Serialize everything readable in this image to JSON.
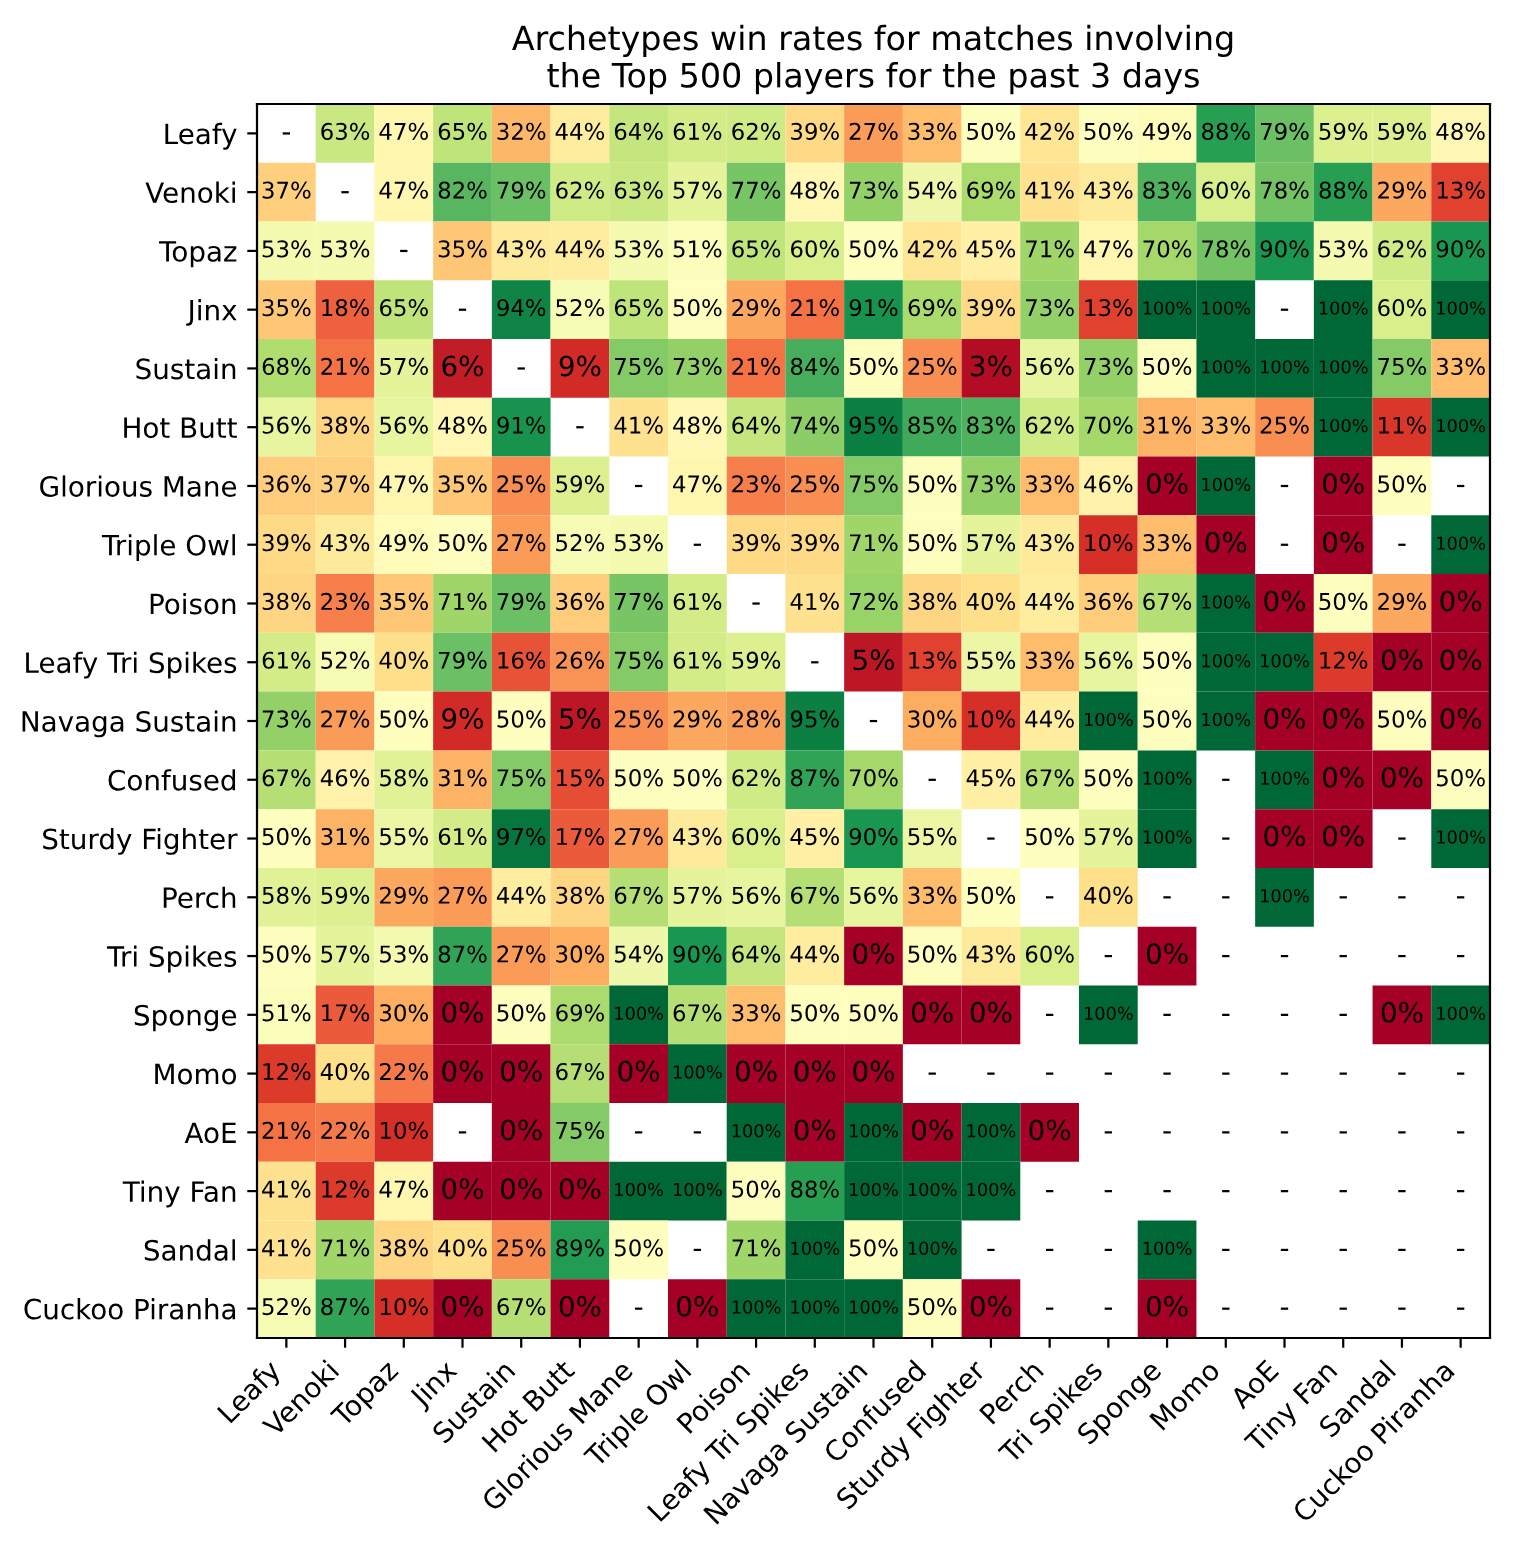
{
  "chart_data": {
    "type": "heatmap",
    "title": "Archetypes win rates for matches involving\nthe Top 500 players for the past 3 days",
    "categories": [
      "Leafy",
      "Venoki",
      "Topaz",
      "Jinx",
      "Sustain",
      "Hot Butt",
      "Glorious Mane",
      "Triple Owl",
      "Poison",
      "Leafy Tri Spikes",
      "Navaga Sustain",
      "Confused",
      "Sturdy Fighter",
      "Perch",
      "Tri Spikes",
      "Sponge",
      "Momo",
      "AoE",
      "Tiny Fan",
      "Sandal",
      "Cuckoo Piranha"
    ],
    "y_categories": [
      "Leafy",
      "Venoki",
      "Topaz",
      "Jinx",
      "Sustain",
      "Hot Butt",
      "Glorious Mane",
      "Triple Owl",
      "Poison",
      "Leafy Tri Spikes",
      "Navaga Sustain",
      "Confused",
      "Sturdy Fighter",
      "Perch",
      "Tri Spikes",
      "Sponge",
      "Momo",
      "AoE",
      "Tiny Fan",
      "Sandal",
      "Cuckoo Piranha"
    ],
    "cells": [
      [
        null,
        63,
        47,
        65,
        32,
        44,
        64,
        61,
        62,
        39,
        27,
        33,
        50,
        42,
        50,
        49,
        88,
        79,
        59,
        59,
        48
      ],
      [
        37,
        null,
        47,
        82,
        79,
        62,
        63,
        57,
        77,
        48,
        73,
        54,
        69,
        41,
        43,
        83,
        60,
        78,
        88,
        29,
        13
      ],
      [
        53,
        53,
        null,
        35,
        43,
        44,
        53,
        51,
        65,
        60,
        50,
        42,
        45,
        71,
        47,
        70,
        78,
        90,
        53,
        62,
        90
      ],
      [
        35,
        18,
        65,
        null,
        94,
        52,
        65,
        50,
        29,
        21,
        91,
        69,
        39,
        73,
        13,
        100,
        100,
        null,
        100,
        60,
        100
      ],
      [
        68,
        21,
        57,
        6,
        null,
        9,
        75,
        73,
        21,
        84,
        50,
        25,
        3,
        56,
        73,
        50,
        100,
        100,
        100,
        75,
        33
      ],
      [
        56,
        38,
        56,
        48,
        91,
        null,
        41,
        48,
        64,
        74,
        95,
        85,
        83,
        62,
        70,
        31,
        33,
        25,
        100,
        11,
        100
      ],
      [
        36,
        37,
        47,
        35,
        25,
        59,
        null,
        47,
        23,
        25,
        75,
        50,
        73,
        33,
        46,
        0,
        100,
        null,
        0,
        50,
        null
      ],
      [
        39,
        43,
        49,
        50,
        27,
        52,
        53,
        null,
        39,
        39,
        71,
        50,
        57,
        43,
        10,
        33,
        0,
        null,
        0,
        null,
        100
      ],
      [
        38,
        23,
        35,
        71,
        79,
        36,
        77,
        61,
        null,
        41,
        72,
        38,
        40,
        44,
        36,
        67,
        100,
        0,
        50,
        29,
        0
      ],
      [
        61,
        52,
        40,
        79,
        16,
        26,
        75,
        61,
        59,
        null,
        5,
        13,
        55,
        33,
        56,
        50,
        100,
        100,
        12,
        0,
        0
      ],
      [
        73,
        27,
        50,
        9,
        50,
        5,
        25,
        29,
        28,
        95,
        null,
        30,
        10,
        44,
        100,
        50,
        100,
        0,
        0,
        50,
        0
      ],
      [
        67,
        46,
        58,
        31,
        75,
        15,
        50,
        50,
        62,
        87,
        70,
        null,
        45,
        67,
        50,
        100,
        null,
        100,
        0,
        0,
        50
      ],
      [
        50,
        31,
        55,
        61,
        97,
        17,
        27,
        43,
        60,
        45,
        90,
        55,
        null,
        50,
        57,
        100,
        null,
        0,
        0,
        null,
        100
      ],
      [
        58,
        59,
        29,
        27,
        44,
        38,
        67,
        57,
        56,
        67,
        56,
        33,
        50,
        null,
        40,
        null,
        null,
        100,
        null,
        null,
        null
      ],
      [
        50,
        57,
        53,
        87,
        27,
        30,
        54,
        90,
        64,
        44,
        0,
        50,
        43,
        60,
        null,
        0,
        null,
        null,
        null,
        null,
        null
      ],
      [
        51,
        17,
        30,
        0,
        50,
        69,
        100,
        67,
        33,
        50,
        50,
        0,
        0,
        null,
        100,
        null,
        null,
        null,
        null,
        0,
        100
      ],
      [
        12,
        40,
        22,
        0,
        0,
        67,
        0,
        100,
        0,
        0,
        0,
        null,
        null,
        null,
        null,
        null,
        null,
        null,
        null,
        null,
        null
      ],
      [
        21,
        22,
        10,
        null,
        0,
        75,
        null,
        null,
        100,
        0,
        100,
        0,
        100,
        0,
        null,
        null,
        null,
        null,
        null,
        null,
        null
      ],
      [
        41,
        12,
        47,
        0,
        0,
        0,
        100,
        100,
        50,
        88,
        100,
        100,
        100,
        null,
        null,
        null,
        null,
        null,
        null,
        null,
        null
      ],
      [
        41,
        71,
        38,
        40,
        25,
        89,
        50,
        null,
        71,
        100,
        50,
        100,
        null,
        null,
        null,
        100,
        null,
        null,
        null,
        null,
        null
      ],
      [
        52,
        87,
        10,
        0,
        67,
        0,
        null,
        0,
        100,
        100,
        100,
        50,
        0,
        null,
        null,
        0,
        null,
        null,
        null,
        null,
        null
      ]
    ],
    "cell_labels": [
      [
        "-",
        "63%",
        "47%",
        "65%",
        "32%",
        "44%",
        "64%",
        "61%",
        "62%",
        "39%",
        "27%",
        "33%",
        "50%",
        "42%",
        "50%",
        "49%",
        "88%",
        "79%",
        "59%",
        "59%",
        "48%"
      ],
      [
        "37%",
        "-",
        "47%",
        "82%",
        "79%",
        "62%",
        "63%",
        "57%",
        "77%",
        "48%",
        "73%",
        "54%",
        "69%",
        "41%",
        "43%",
        "83%",
        "60%",
        "78%",
        "88%",
        "29%",
        "13%"
      ],
      [
        "53%",
        "53%",
        "-",
        "35%",
        "43%",
        "44%",
        "53%",
        "51%",
        "65%",
        "60%",
        "50%",
        "42%",
        "45%",
        "71%",
        "47%",
        "70%",
        "78%",
        "90%",
        "53%",
        "62%",
        "90%"
      ],
      [
        "35%",
        "18%",
        "65%",
        "-",
        "94%",
        "52%",
        "65%",
        "50%",
        "29%",
        "21%",
        "91%",
        "69%",
        "39%",
        "73%",
        "13%",
        "100%",
        "100%",
        "-",
        "100%",
        "60%",
        "100%"
      ],
      [
        "68%",
        "21%",
        "57%",
        "6%",
        "-",
        "9%",
        "75%",
        "73%",
        "21%",
        "84%",
        "50%",
        "25%",
        "3%",
        "56%",
        "73%",
        "50%",
        "100%",
        "100%",
        "100%",
        "75%",
        "33%"
      ],
      [
        "56%",
        "38%",
        "56%",
        "48%",
        "91%",
        "-",
        "41%",
        "48%",
        "64%",
        "74%",
        "95%",
        "85%",
        "83%",
        "62%",
        "70%",
        "31%",
        "33%",
        "25%",
        "100%",
        "11%",
        "100%"
      ],
      [
        "36%",
        "37%",
        "47%",
        "35%",
        "25%",
        "59%",
        "-",
        "47%",
        "23%",
        "25%",
        "75%",
        "50%",
        "73%",
        "33%",
        "46%",
        "0%",
        "100%",
        "-",
        "0%",
        "50%",
        "-"
      ],
      [
        "39%",
        "43%",
        "49%",
        "50%",
        "27%",
        "52%",
        "53%",
        "-",
        "39%",
        "39%",
        "71%",
        "50%",
        "57%",
        "43%",
        "10%",
        "33%",
        "0%",
        "-",
        "0%",
        "-",
        "100%"
      ],
      [
        "38%",
        "23%",
        "35%",
        "71%",
        "79%",
        "36%",
        "77%",
        "61%",
        "-",
        "41%",
        "72%",
        "38%",
        "40%",
        "44%",
        "36%",
        "67%",
        "100%",
        "0%",
        "50%",
        "29%",
        "0%"
      ],
      [
        "61%",
        "52%",
        "40%",
        "79%",
        "16%",
        "26%",
        "75%",
        "61%",
        "59%",
        "-",
        "5%",
        "13%",
        "55%",
        "33%",
        "56%",
        "50%",
        "100%",
        "100%",
        "12%",
        "0%",
        "0%"
      ],
      [
        "73%",
        "27%",
        "50%",
        "9%",
        "50%",
        "5%",
        "25%",
        "29%",
        "28%",
        "95%",
        "-",
        "30%",
        "10%",
        "44%",
        "100%",
        "50%",
        "100%",
        "0%",
        "0%",
        "50%",
        "0%"
      ],
      [
        "67%",
        "46%",
        "58%",
        "31%",
        "75%",
        "15%",
        "50%",
        "50%",
        "62%",
        "87%",
        "70%",
        "-",
        "45%",
        "67%",
        "50%",
        "100%",
        "-",
        "100%",
        "0%",
        "0%",
        "50%"
      ],
      [
        "50%",
        "31%",
        "55%",
        "61%",
        "97%",
        "17%",
        "27%",
        "43%",
        "60%",
        "45%",
        "90%",
        "55%",
        "-",
        "50%",
        "57%",
        "100%",
        "-",
        "0%",
        "0%",
        "-",
        "100%"
      ],
      [
        "58%",
        "59%",
        "29%",
        "27%",
        "44%",
        "38%",
        "67%",
        "57%",
        "56%",
        "67%",
        "56%",
        "33%",
        "50%",
        "-",
        "40%",
        "-",
        "-",
        "100%",
        "-",
        "-",
        "-"
      ],
      [
        "50%",
        "57%",
        "53%",
        "87%",
        "27%",
        "30%",
        "54%",
        "90%",
        "64%",
        "44%",
        "0%",
        "50%",
        "43%",
        "60%",
        "-",
        "0%",
        "-",
        "-",
        "-",
        "-",
        "-"
      ],
      [
        "51%",
        "17%",
        "30%",
        "0%",
        "50%",
        "69%",
        "100%",
        "67%",
        "33%",
        "50%",
        "50%",
        "0%",
        "0%",
        "-",
        "100%",
        "-",
        "-",
        "-",
        "-",
        "0%",
        "100%"
      ],
      [
        "12%",
        "40%",
        "22%",
        "0%",
        "0%",
        "67%",
        "0%",
        "100%",
        "0%",
        "0%",
        "0%",
        "-",
        "-",
        "-",
        "-",
        "-",
        "-",
        "-",
        "-",
        "-",
        "-"
      ],
      [
        "21%",
        "22%",
        "10%",
        "-",
        "0%",
        "75%",
        "-",
        "-",
        "100%",
        "0%",
        "100%",
        "0%",
        "100%",
        "0%",
        "-",
        "-",
        "-",
        "-",
        "-",
        "-",
        "-"
      ],
      [
        "41%",
        "12%",
        "47%",
        "0%",
        "0%",
        "0%",
        "100%",
        "100%",
        "50%",
        "88%",
        "100%",
        "100%",
        "100%",
        "-",
        "-",
        "-",
        "-",
        "-",
        "-",
        "-",
        "-"
      ],
      [
        "41%",
        "71%",
        "38%",
        "40%",
        "25%",
        "89%",
        "50%",
        "-",
        "71%",
        "100%",
        "50%",
        "100%",
        "-",
        "-",
        "-",
        "100%",
        "-",
        "-",
        "-",
        "-",
        "-"
      ],
      [
        "52%",
        "87%",
        "10%",
        "0%",
        "67%",
        "0%",
        "-",
        "0%",
        "100%",
        "100%",
        "100%",
        "50%",
        "0%",
        "-",
        "-",
        "0%",
        "-",
        "-",
        "-",
        "-",
        "-"
      ]
    ]
  }
}
